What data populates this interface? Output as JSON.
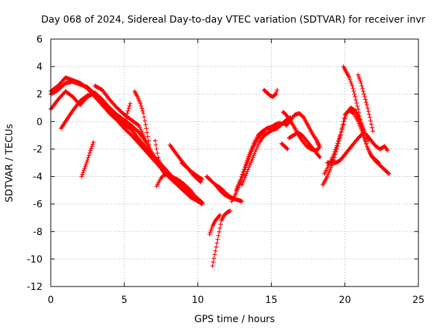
{
  "chart_data": {
    "type": "scatter",
    "title": "Day 068 of 2024, Sidereal Day-to-day VTEC variation (SDTVAR) for receiver invr",
    "xlabel": "GPS time / hours",
    "ylabel": "SDTVAR / TECUs",
    "xlim": [
      0,
      25
    ],
    "ylim": [
      -12,
      6
    ],
    "xticks": [
      "0",
      "5",
      "10",
      "15",
      "20",
      "25"
    ],
    "yticks": [
      "6",
      "4",
      "2",
      "0",
      "-2",
      "-4",
      "-6",
      "-8",
      "-10",
      "-12"
    ],
    "grid": true,
    "marker": "plus",
    "color": "#ff0000",
    "series": [
      {
        "name": "s1",
        "x": [
          0,
          0.5,
          1,
          1.5,
          2,
          2.5,
          3,
          3.5,
          4,
          4.5,
          5,
          5.5,
          6,
          6.5,
          7,
          7.5,
          8,
          8.5,
          9,
          9.5,
          10,
          10.3
        ],
        "y": [
          2.2,
          2.6,
          3.2,
          3.0,
          2.8,
          2.4,
          1.8,
          1.2,
          0.6,
          0.1,
          -0.5,
          -1.0,
          -1.6,
          -2.2,
          -2.8,
          -3.4,
          -4.0,
          -4.5,
          -5.0,
          -5.5,
          -5.8,
          -6.0
        ]
      },
      {
        "name": "s2",
        "x": [
          0,
          0.5,
          1,
          1.5,
          2,
          2.5,
          3,
          3.5,
          4,
          4.5,
          5,
          5.5,
          6,
          6.5,
          7,
          7.5,
          8,
          8.5,
          9,
          9.5,
          10,
          10.3
        ],
        "y": [
          2.0,
          2.3,
          2.8,
          2.9,
          2.7,
          2.5,
          2.0,
          1.5,
          0.9,
          0.4,
          -0.2,
          -0.6,
          -1.3,
          -1.9,
          -2.5,
          -3.1,
          -3.7,
          -4.3,
          -4.8,
          -5.3,
          -5.6,
          -5.9
        ]
      },
      {
        "name": "s3",
        "x": [
          0,
          0.5,
          1,
          1.5,
          2,
          2.5,
          3,
          3.5,
          4,
          4.5,
          5,
          5.5,
          6,
          6.5
        ],
        "y": [
          0.9,
          1.6,
          2.2,
          1.8,
          1.2,
          1.8,
          2.1,
          1.6,
          1.0,
          0.5,
          0.1,
          -0.3,
          -0.8,
          -1.5
        ]
      },
      {
        "name": "s4",
        "x": [
          0.7,
          1,
          1.5,
          2,
          2.5,
          2.9
        ],
        "y": [
          -0.5,
          0,
          0.8,
          1.5,
          1.9,
          2.0
        ]
      },
      {
        "name": "s5",
        "x": [
          2.1,
          2.3,
          2.5,
          2.7,
          2.9
        ],
        "y": [
          -4.0,
          -3.4,
          -2.8,
          -2.1,
          -1.5
        ]
      },
      {
        "name": "s6",
        "x": [
          3,
          3.5,
          4,
          4.5,
          5,
          5.5,
          6,
          6.5,
          7
        ],
        "y": [
          2.6,
          2.3,
          1.6,
          1.0,
          0.5,
          0.1,
          -0.3,
          -1.5,
          -2.5
        ]
      },
      {
        "name": "s7",
        "x": [
          5.0,
          5.2,
          5.4
        ],
        "y": [
          -0.4,
          0.6,
          1.3
        ]
      },
      {
        "name": "s8",
        "x": [
          5.7,
          5.9,
          6.1,
          6.3,
          6.5,
          6.7
        ],
        "y": [
          2.2,
          1.8,
          1.3,
          0.6,
          -0.5,
          -1.7
        ]
      },
      {
        "name": "s9",
        "x": [
          7.1,
          7.3,
          7.5,
          7.8
        ],
        "y": [
          -1.4,
          -2.6,
          -3.4,
          -3.9
        ]
      },
      {
        "name": "s10",
        "x": [
          7.2,
          7.5,
          7.8,
          8.2,
          8.6,
          9,
          9.5,
          10,
          10.3
        ],
        "y": [
          -4.7,
          -4.1,
          -3.8,
          -4.0,
          -4.2,
          -4.5,
          -5.0,
          -5.7,
          -6.0
        ]
      },
      {
        "name": "s11",
        "x": [
          8.1,
          8.5,
          9,
          9.5,
          10,
          10.3
        ],
        "y": [
          -1.7,
          -2.3,
          -3.0,
          -3.6,
          -4.0,
          -4.2
        ]
      },
      {
        "name": "s12",
        "x": [
          8.9,
          9.3,
          9.7,
          10,
          10.2
        ],
        "y": [
          -3.0,
          -3.4,
          -3.9,
          -4.2,
          -4.4
        ]
      },
      {
        "name": "s13",
        "x": [
          10.6,
          10.9,
          11.2,
          11.5,
          11.8,
          12.1,
          12.4,
          12.7,
          13
        ],
        "y": [
          -4.0,
          -4.3,
          -4.6,
          -5.0,
          -5.3,
          -5.5,
          -5.6,
          -5.7,
          -5.8
        ]
      },
      {
        "name": "s14",
        "x": [
          11.0,
          11.2,
          11.4,
          11.6,
          11.8,
          12.0,
          12.2
        ],
        "y": [
          -10.5,
          -9.4,
          -8.3,
          -7.2,
          -6.8,
          -6.6,
          -6.5
        ]
      },
      {
        "name": "s15",
        "x": [
          10.8,
          11.0,
          11.2,
          11.5
        ],
        "y": [
          -8.2,
          -7.6,
          -7.2,
          -6.8
        ]
      },
      {
        "name": "s16",
        "x": [
          11.2,
          11.5,
          11.8,
          12.1,
          12.4
        ],
        "y": [
          -4.6,
          -4.8,
          -5.1,
          -5.4,
          -5.6
        ]
      },
      {
        "name": "s17",
        "x": [
          12.3,
          12.6,
          12.9,
          13.2,
          13.5,
          13.8,
          14.1,
          14.4,
          14.7,
          15,
          15.3,
          15.6,
          16,
          16.3
        ],
        "y": [
          -5.8,
          -5.2,
          -4.4,
          -3.5,
          -2.6,
          -1.8,
          -1.2,
          -0.8,
          -0.5,
          -0.4,
          -0.3,
          -0.2,
          -0.1,
          0.0
        ]
      },
      {
        "name": "s18",
        "x": [
          12.6,
          12.9,
          13.2,
          13.5,
          13.8,
          14.1,
          14.4,
          14.7,
          15,
          15.3,
          15.6
        ],
        "y": [
          -5.0,
          -4.2,
          -3.3,
          -2.4,
          -1.6,
          -1.0,
          -0.7,
          -0.5,
          -0.4,
          -0.2,
          -0.1
        ]
      },
      {
        "name": "s19",
        "x": [
          13,
          13.3,
          13.6,
          13.9,
          14.2,
          14.5,
          14.8,
          15.1,
          15.4,
          15.7,
          16,
          16.3
        ],
        "y": [
          -4.6,
          -3.8,
          -3.0,
          -2.2,
          -1.5,
          -1.0,
          -0.8,
          -0.6,
          -0.5,
          -0.2,
          0.1,
          0.3
        ]
      },
      {
        "name": "s20",
        "x": [
          14.5,
          14.7,
          14.9,
          15.1,
          15.3,
          15.4
        ],
        "y": [
          2.3,
          2.1,
          1.9,
          1.8,
          2.0,
          2.3
        ]
      },
      {
        "name": "s21",
        "x": [
          15.8,
          16,
          16.2,
          16.5,
          16.8,
          17.1,
          17.4,
          17.7,
          18,
          18.2
        ],
        "y": [
          0.7,
          0.5,
          0.2,
          -0.3,
          -0.9,
          -1.4,
          -1.8,
          -2.0,
          -2.1,
          -2.0
        ]
      },
      {
        "name": "s22",
        "x": [
          16,
          16.3,
          16.6,
          16.9,
          17.2,
          17.5,
          17.8,
          18.1,
          18.3
        ],
        "y": [
          -0.3,
          0.1,
          0.5,
          0.6,
          0.3,
          -0.3,
          -0.9,
          -1.4,
          -1.8
        ]
      },
      {
        "name": "s23",
        "x": [
          16.2,
          16.5,
          16.8,
          17.1,
          17.4,
          17.7,
          18,
          18.3
        ],
        "y": [
          -1.2,
          -1.0,
          -0.8,
          -1.0,
          -1.4,
          -1.8,
          -2.2,
          -2.6
        ]
      },
      {
        "name": "s24",
        "x": [
          15.7,
          15.9,
          16.1
        ],
        "y": [
          -1.6,
          -1.8,
          -2.0
        ]
      },
      {
        "name": "s25",
        "x": [
          18.1,
          18.3
        ],
        "y": [
          -1.5,
          -1.9
        ]
      },
      {
        "name": "s26",
        "x": [
          18.5,
          18.8,
          19.1,
          19.4,
          19.7,
          20,
          20.3,
          20.6,
          20.9,
          21.2,
          21.5,
          21.8,
          22.1,
          22.4,
          22.7,
          23
        ],
        "y": [
          -4.6,
          -4.0,
          -3.2,
          -2.2,
          -1.0,
          0.5,
          0.8,
          0.6,
          0.0,
          -0.8,
          -1.8,
          -2.5,
          -2.9,
          -3.2,
          -3.5,
          -3.8
        ]
      },
      {
        "name": "s27",
        "x": [
          18.6,
          18.9,
          19.2,
          19.5,
          19.8,
          20.1,
          20.4,
          20.7,
          21,
          21.3,
          21.6
        ],
        "y": [
          -3.8,
          -3.2,
          -2.5,
          -1.6,
          -0.6,
          0.6,
          1.0,
          0.8,
          0.2,
          -0.6,
          -1.4
        ]
      },
      {
        "name": "s28",
        "x": [
          19.9,
          20.1,
          20.3,
          20.5,
          20.7,
          20.9,
          21.1,
          21.3,
          21.5,
          21.7,
          21.9,
          22.1,
          22.3
        ],
        "y": [
          4.0,
          3.6,
          3.2,
          2.6,
          1.8,
          0.9,
          -0.1,
          -1.0,
          -1.8,
          -2.3,
          -2.6,
          -2.8,
          -3.0
        ]
      },
      {
        "name": "s29",
        "x": [
          20.9,
          21.1,
          21.3,
          21.5,
          21.7,
          21.9
        ],
        "y": [
          3.4,
          2.8,
          2.0,
          1.2,
          0.3,
          -0.7
        ]
      },
      {
        "name": "s30",
        "x": [
          21.5,
          21.8,
          22.1,
          22.4,
          22.7,
          22.9
        ],
        "y": [
          -1.0,
          -1.4,
          -1.8,
          -2.0,
          -1.8,
          -2.1
        ]
      },
      {
        "name": "s31",
        "x": [
          18.8,
          19.1,
          19.4,
          19.7,
          20,
          20.3,
          20.6,
          20.9,
          21.2
        ],
        "y": [
          -3.0,
          -3.0,
          -3.0,
          -2.8,
          -2.4,
          -2.0,
          -1.6,
          -1.2,
          -0.9
        ]
      }
    ]
  }
}
